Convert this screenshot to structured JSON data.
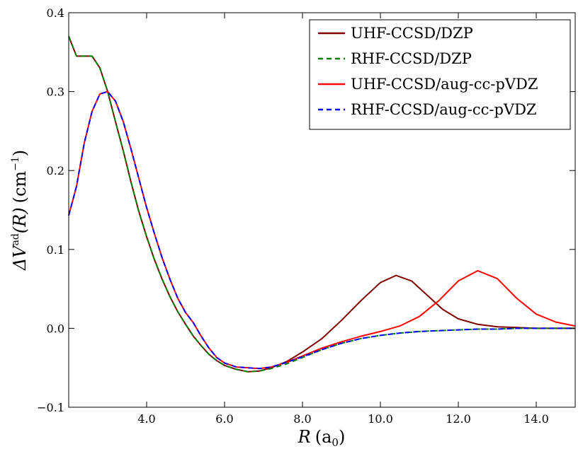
{
  "chart_data": {
    "type": "line",
    "xlabel": {
      "main": "R",
      "units": "(a",
      "sub": "0",
      "close": ")"
    },
    "ylabel": {
      "prefix": "ΔV",
      "sup": "ad",
      "arg": "(R)",
      "units": "(cm",
      "unit_sup": "−1",
      "close": ")"
    },
    "xlim": [
      2.0,
      15.0
    ],
    "ylim": [
      -0.1,
      0.4
    ],
    "xticks": [
      4.0,
      6.0,
      8.0,
      10.0,
      12.0,
      14.0
    ],
    "xtick_labels": [
      "4.0",
      "6.0",
      "8.0",
      "10.0",
      "12.0",
      "14.0"
    ],
    "yticks": [
      -0.1,
      0.0,
      0.1,
      0.2,
      0.3,
      0.4
    ],
    "ytick_labels": [
      "−0.1",
      "0.0",
      "0.1",
      "0.2",
      "0.3",
      "0.4"
    ],
    "grid": false,
    "legend_position": "top-right",
    "series": [
      {
        "name": "UHF-CCSD/DZP",
        "color": "#800000",
        "style": "solid",
        "x": [
          2.0,
          2.2,
          2.4,
          2.6,
          2.8,
          3.0,
          3.2,
          3.4,
          3.6,
          3.8,
          4.0,
          4.2,
          4.4,
          4.6,
          4.8,
          5.0,
          5.2,
          5.4,
          5.6,
          5.8,
          6.0,
          6.3,
          6.6,
          6.9,
          7.2,
          7.6,
          8.0,
          8.5,
          9.0,
          9.5,
          10.0,
          10.4,
          10.8,
          11.2,
          11.6,
          12.0,
          12.5,
          13.0,
          13.5,
          14.0,
          14.5,
          15.0
        ],
        "y": [
          0.37,
          0.345,
          0.345,
          0.345,
          0.33,
          0.3,
          0.262,
          0.225,
          0.185,
          0.148,
          0.116,
          0.087,
          0.062,
          0.04,
          0.021,
          0.005,
          -0.01,
          -0.022,
          -0.033,
          -0.041,
          -0.047,
          -0.052,
          -0.055,
          -0.054,
          -0.05,
          -0.042,
          -0.03,
          -0.013,
          0.01,
          0.035,
          0.058,
          0.067,
          0.06,
          0.042,
          0.024,
          0.012,
          0.005,
          0.002,
          0.001,
          0.0,
          0.0,
          0.0
        ]
      },
      {
        "name": "RHF-CCSD/DZP",
        "color": "#008000",
        "style": "dashed",
        "x": [
          2.0,
          2.2,
          2.4,
          2.6,
          2.8,
          3.0,
          3.2,
          3.4,
          3.6,
          3.8,
          4.0,
          4.2,
          4.4,
          4.6,
          4.8,
          5.0,
          5.2,
          5.4,
          5.6,
          5.8,
          6.0,
          6.3,
          6.6,
          6.9,
          7.2,
          7.6,
          8.0,
          8.5,
          9.0,
          9.5,
          10.0,
          10.5,
          11.0,
          11.5,
          12.0,
          12.5,
          13.0,
          13.5,
          14.0,
          14.5,
          15.0
        ],
        "y": [
          0.37,
          0.345,
          0.345,
          0.345,
          0.33,
          0.3,
          0.262,
          0.225,
          0.185,
          0.148,
          0.116,
          0.087,
          0.062,
          0.04,
          0.021,
          0.005,
          -0.01,
          -0.022,
          -0.033,
          -0.041,
          -0.047,
          -0.052,
          -0.055,
          -0.054,
          -0.051,
          -0.045,
          -0.037,
          -0.027,
          -0.019,
          -0.013,
          -0.009,
          -0.006,
          -0.004,
          -0.003,
          -0.002,
          -0.001,
          -0.001,
          0.0,
          0.0,
          0.0,
          0.0
        ]
      },
      {
        "name": "UHF-CCSD/aug-cc-pVDZ",
        "color": "#ff0000",
        "style": "solid",
        "x": [
          2.0,
          2.2,
          2.4,
          2.6,
          2.8,
          3.0,
          3.2,
          3.4,
          3.6,
          3.8,
          4.0,
          4.2,
          4.4,
          4.6,
          4.8,
          5.0,
          5.2,
          5.4,
          5.6,
          5.8,
          6.0,
          6.3,
          6.6,
          6.9,
          7.2,
          7.6,
          8.0,
          8.5,
          9.0,
          9.5,
          10.0,
          10.5,
          11.0,
          11.5,
          12.0,
          12.5,
          13.0,
          13.5,
          14.0,
          14.5,
          15.0
        ],
        "y": [
          0.143,
          0.18,
          0.235,
          0.275,
          0.297,
          0.3,
          0.288,
          0.262,
          0.227,
          0.19,
          0.153,
          0.12,
          0.089,
          0.062,
          0.038,
          0.02,
          0.007,
          -0.01,
          -0.025,
          -0.037,
          -0.044,
          -0.049,
          -0.05,
          -0.051,
          -0.049,
          -0.043,
          -0.035,
          -0.025,
          -0.017,
          -0.01,
          -0.004,
          0.003,
          0.015,
          0.035,
          0.06,
          0.073,
          0.063,
          0.038,
          0.018,
          0.008,
          0.003
        ]
      },
      {
        "name": "RHF-CCSD/aug-cc-pVDZ",
        "color": "#0000ff",
        "style": "dashed",
        "x": [
          2.0,
          2.2,
          2.4,
          2.6,
          2.8,
          3.0,
          3.2,
          3.4,
          3.6,
          3.8,
          4.0,
          4.2,
          4.4,
          4.6,
          4.8,
          5.0,
          5.2,
          5.4,
          5.6,
          5.8,
          6.0,
          6.3,
          6.6,
          6.9,
          7.2,
          7.6,
          8.0,
          8.5,
          9.0,
          9.5,
          10.0,
          10.5,
          11.0,
          11.5,
          12.0,
          12.5,
          13.0,
          13.5,
          14.0,
          14.5,
          15.0
        ],
        "y": [
          0.143,
          0.18,
          0.235,
          0.275,
          0.297,
          0.3,
          0.288,
          0.262,
          0.227,
          0.19,
          0.153,
          0.12,
          0.089,
          0.062,
          0.038,
          0.02,
          0.007,
          -0.01,
          -0.025,
          -0.037,
          -0.044,
          -0.049,
          -0.05,
          -0.051,
          -0.049,
          -0.043,
          -0.036,
          -0.027,
          -0.019,
          -0.013,
          -0.009,
          -0.006,
          -0.004,
          -0.003,
          -0.002,
          -0.001,
          -0.001,
          0.0,
          0.0,
          0.0,
          0.0
        ]
      }
    ]
  }
}
